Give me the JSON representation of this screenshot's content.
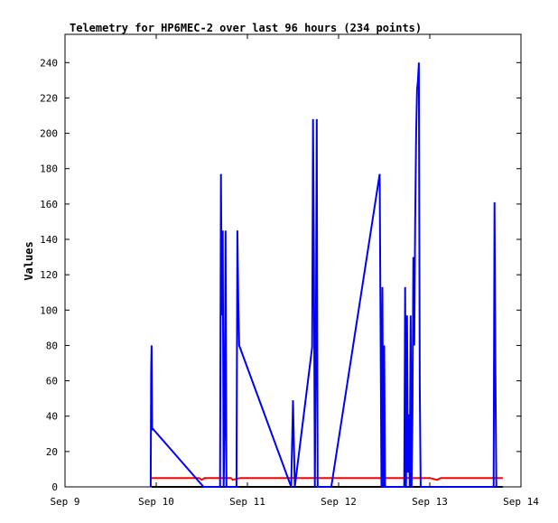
{
  "chart_data": {
    "type": "line",
    "title": "Telemetry for HP6MEC-2 over last 96 hours (234 points)",
    "ylabel": "Values",
    "xlabel": "",
    "xlim": [
      0,
      5
    ],
    "ylim": [
      0,
      256
    ],
    "x_ticks": [
      {
        "value": 0,
        "label": "Sep 9"
      },
      {
        "value": 1,
        "label": "Sep 10"
      },
      {
        "value": 2,
        "label": "Sep 11"
      },
      {
        "value": 3,
        "label": "Sep 12"
      },
      {
        "value": 4,
        "label": "Sep 13"
      },
      {
        "value": 5,
        "label": "Sep 14"
      }
    ],
    "y_ticks": [
      0,
      20,
      40,
      60,
      80,
      100,
      120,
      140,
      160,
      180,
      200,
      220,
      240
    ],
    "grid": false,
    "series": [
      {
        "name": "",
        "color": "#ff0000",
        "points": [
          [
            0.95,
            5
          ],
          [
            1.47,
            5
          ],
          [
            1.5,
            4
          ],
          [
            1.53,
            5
          ],
          [
            1.75,
            5
          ],
          [
            1.82,
            5
          ],
          [
            1.84,
            4
          ],
          [
            1.92,
            5
          ],
          [
            2.5,
            5
          ],
          [
            2.8,
            5
          ],
          [
            3.6,
            5
          ],
          [
            4.0,
            5
          ],
          [
            4.08,
            4
          ],
          [
            4.12,
            5
          ],
          [
            4.8,
            5
          ]
        ]
      },
      {
        "name": "",
        "color": "#000000",
        "points": [
          [
            0.95,
            0
          ],
          [
            4.8,
            0
          ]
        ]
      },
      {
        "name": "",
        "color": "#0000ff",
        "points": [
          [
            0.94,
            0
          ],
          [
            0.945,
            65
          ],
          [
            0.95,
            80
          ],
          [
            0.955,
            32
          ],
          [
            0.96,
            33
          ],
          [
            1.52,
            0
          ],
          [
            1.7,
            0
          ],
          [
            1.71,
            177
          ],
          [
            1.72,
            97
          ],
          [
            1.73,
            145
          ],
          [
            1.74,
            0
          ],
          [
            1.75,
            37
          ],
          [
            1.76,
            145
          ],
          [
            1.77,
            0
          ],
          [
            1.88,
            0
          ],
          [
            1.89,
            145
          ],
          [
            1.9,
            105
          ],
          [
            1.91,
            80
          ],
          [
            2.48,
            0
          ],
          [
            2.5,
            49
          ],
          [
            2.52,
            0
          ],
          [
            2.71,
            79
          ],
          [
            2.72,
            208
          ],
          [
            2.73,
            128
          ],
          [
            2.74,
            0
          ],
          [
            2.75,
            80
          ],
          [
            2.76,
            208
          ],
          [
            2.77,
            0
          ],
          [
            2.92,
            0
          ],
          [
            3.45,
            177
          ],
          [
            3.47,
            0
          ],
          [
            3.48,
            113
          ],
          [
            3.49,
            0
          ],
          [
            3.5,
            80
          ],
          [
            3.51,
            0
          ],
          [
            3.72,
            0
          ],
          [
            3.73,
            113
          ],
          [
            3.74,
            0
          ],
          [
            3.75,
            97
          ],
          [
            3.76,
            8
          ],
          [
            3.77,
            41
          ],
          [
            3.78,
            0
          ],
          [
            3.79,
            97
          ],
          [
            3.8,
            0
          ],
          [
            3.81,
            40
          ],
          [
            3.82,
            130
          ],
          [
            3.83,
            80
          ],
          [
            3.84,
            150
          ],
          [
            3.85,
            200
          ],
          [
            3.86,
            225
          ],
          [
            3.87,
            230
          ],
          [
            3.88,
            240
          ],
          [
            3.89,
            57
          ],
          [
            3.9,
            0
          ],
          [
            4.7,
            0
          ],
          [
            4.71,
            161
          ],
          [
            4.72,
            65
          ],
          [
            4.73,
            0
          ]
        ]
      }
    ]
  }
}
